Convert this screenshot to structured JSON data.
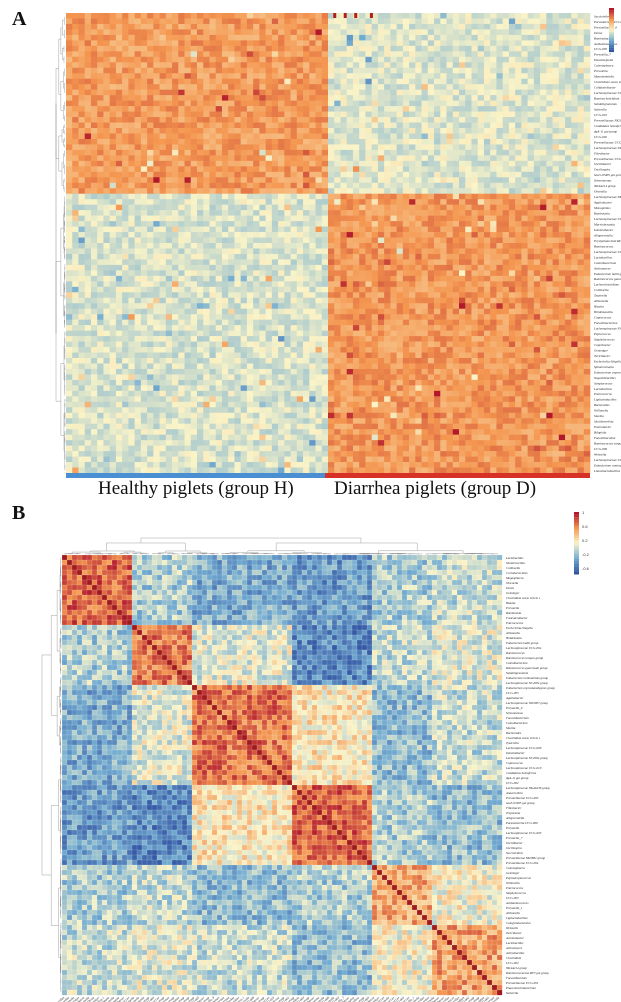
{
  "panels": {
    "a": "A",
    "b": "B"
  },
  "groups": {
    "healthy": "Healthy piglets (group H)",
    "diarrhea": "Diarrhea piglets (group D)"
  },
  "colors": {
    "low": "#3b66b0",
    "mid": "#fbf3c4",
    "high": "#b0201d",
    "group_h_bar": "#4a8fd1",
    "group_d_bar": "#d73027"
  },
  "chart_data": [
    {
      "type": "heatmap",
      "title": "",
      "xlabel": "",
      "ylabel": "",
      "columns_groups": [
        "Healthy piglets (group H)",
        "Diarrhea piglets (group D)"
      ],
      "color_scale": [
        -2,
        2
      ],
      "rows_enriched_in_group_H": [
        "Succinivibrio",
        "Parasutterella UCG-006",
        "Prevotellaceae_9",
        "Dorea",
        "Ruminobacter",
        "Acidaminococcus",
        "UCG-005",
        "Prevotella_7",
        "Eisenbergiella",
        "Catenisphaera",
        "Prevotella",
        "Mannheimiella",
        "Clostridium sensu stricto 1",
        "Colidextribacter",
        "Lachnospiraceae UCG-004",
        "Ruminoclostridium",
        "Subdoligranulum",
        "Sutterella",
        "UCG-010",
        "Prevotellaceae NK3B31 group",
        "Candidatus Soleaferrea",
        "dgA-11 gut group",
        "UCG-002",
        "Prevotellaceae UCG-004",
        "Lachnospiraceae ND3007 group",
        "Fibrobacter",
        "Prevotellaceae UCG-003",
        "Oscillibacter",
        "Oscillospira",
        "hoa5-07d05 gut group",
        "Selenomonas",
        "NK4A214 group",
        "Olsenella"
      ],
      "rows_enriched_in_group_D": [
        "Lachnospiraceae NK4B4 group",
        "Agathobacter",
        "Monoglobus",
        "Romboutsia",
        "Lachnospiraceae UCG-010",
        "Marvinbryantia",
        "Intestinibacter",
        "Alloprevotella",
        "Erysipelatoclostridium",
        "Ruminococcus",
        "Lachnospiraceae UCG-009",
        "Lactobacillus",
        "Catenibacterium",
        "Actinomyces",
        "Eubacterium hallii group",
        "Ruminococcus gauvreauii group",
        "Lachnoclostridium",
        "Collinsella",
        "Tyzzerella",
        "Allisonella",
        "Blautia",
        "Holdemanella",
        "Coprococcus",
        "Faecalibacterium",
        "Lachnospiraceae NC2004 group",
        "Peptococcus",
        "Staphylococcus",
        "Coprobacter",
        "Gemmiger",
        "Turicibacter",
        "Escherichia-Shigella",
        "Sphaerochaeta",
        "Eubacterium coprostanoligenes group",
        "Negativibacillus",
        "Streptococcus",
        "Lactobacillus",
        "Enterococcus",
        "Ligilactobacillus",
        "Bacteroides",
        "Veillonella",
        "Slackia",
        "Shuttleworthia",
        "Enterobacter",
        "Bilophila",
        "Faecalibaculum",
        "Ruminococcus torques group",
        "UCG-009",
        "Weissella",
        "Lachnospiraceae UCG-003",
        "Eubacterium ruminantium group",
        "Limosilactobacillus"
      ]
    },
    {
      "type": "heatmap",
      "title": "",
      "subtype": "correlation-matrix",
      "color_scale": [
        -0.6,
        1
      ],
      "legend_ticks": [
        "1",
        "0.6",
        "0.2",
        "-0.2",
        "-0.6"
      ],
      "labels": [
        "Lactobacillus",
        "Shuttleworthia",
        "Collinsella",
        "Coriobacteriales",
        "Megasphaera",
        "Olsenella",
        "Dorea",
        "Gemmiger",
        "Clostridium sensu stricto 1",
        "Blautia",
        "Prevotella",
        "Romboutsia",
        "Fusicatenibacter",
        "Enterococcus",
        "Escherichia-Shigella",
        "Allisonella",
        "Holdemania",
        "Eubacterium hallii group",
        "Lachnospiraceae UCG-004",
        "Ruminococcus",
        "Ruminococcus torques group",
        "Catenibacterium",
        "Ruminococcus gauvreauii group",
        "Subdoligranulum",
        "Eubacterium ruminantium group",
        "Lachnospiraceae NC2004 group",
        "Eubacterium coprostanoligenes group",
        "UCG-005",
        "Agathobacter",
        "Lachnospiraceae ND3007 group",
        "Prevotella_9",
        "Selenomonas",
        "Faecalibacterium",
        "Catenibacterium",
        "Slackia",
        "Bacteroides",
        "Clostridium sensu stricto 1",
        "Tyzzerella",
        "Lachnospiraceae UCG-009",
        "Intestinibacter",
        "Lachnospiraceae NC2004 group",
        "Coprococcus",
        "Lachnospiraceae UCG-010",
        "Candidatus Soleaferrea",
        "dgA-11 gut group",
        "UCG-002",
        "Lachnospiraceae NK4A136 group",
        "Anaerovibrio",
        "Prevotellaceae UCG-003",
        "hoa5-07d05 gut group",
        "Fibrobacter",
        "Treponema",
        "Alloprevotella",
        "Parasutterella UCG-006",
        "Prevotella",
        "Lachnospiraceae UCG-003",
        "Prevotella_7",
        "Oscillibacter",
        "Oscillospira",
        "Succinivibrio",
        "Prevotellaceae NK3B31 group",
        "Prevotellaceae UCG-004",
        "Catenisphaera",
        "Gemmiger",
        "Peptostreptococcus",
        "Veillonella",
        "Enterococcus",
        "Staphylococcus",
        "UCG-003",
        "Acidaminococcus",
        "Prevotella_1",
        "Allisonella",
        "Ligilactobacillus",
        "Campylobacterales",
        "Weissella",
        "Turicibacter",
        "Acinetobacter",
        "Lactobacillus",
        "Actinomyces",
        "Actinobacillus",
        "Clostridium",
        "UCG-002",
        "NK4A214 group",
        "Ruminococcaceae RF3 gut group",
        "Faecalibaculum",
        "Prevotellaceae UCG-001",
        "Phascolarctobacterium",
        "Sutterella"
      ]
    }
  ]
}
